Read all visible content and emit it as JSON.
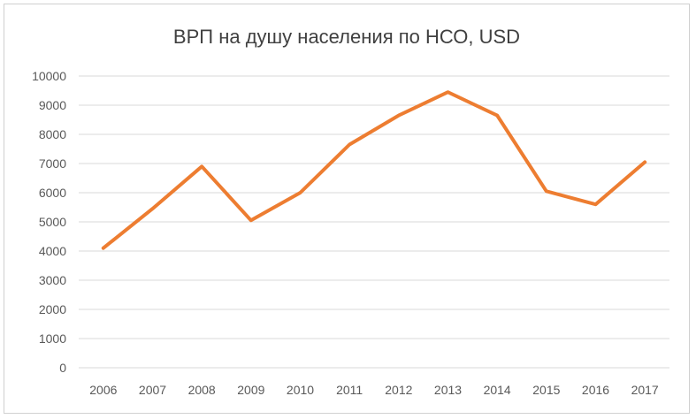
{
  "chart_data": {
    "type": "line",
    "title": "ВРП на душу населения по НСО, USD",
    "xlabel": "",
    "ylabel": "",
    "categories": [
      "2006",
      "2007",
      "2008",
      "2009",
      "2010",
      "2011",
      "2012",
      "2013",
      "2014",
      "2015",
      "2016",
      "2017"
    ],
    "series": [
      {
        "values": [
          4100,
          5450,
          6900,
          5050,
          6000,
          7650,
          8650,
          9450,
          8650,
          6050,
          5600,
          7050
        ],
        "color": "#ED7D31"
      }
    ],
    "ylim": [
      0,
      10000
    ],
    "yticks": [
      0,
      1000,
      2000,
      3000,
      4000,
      5000,
      6000,
      7000,
      8000,
      9000,
      10000
    ],
    "grid": true,
    "gridline_color": "#d9d9d9",
    "legend": "none"
  }
}
